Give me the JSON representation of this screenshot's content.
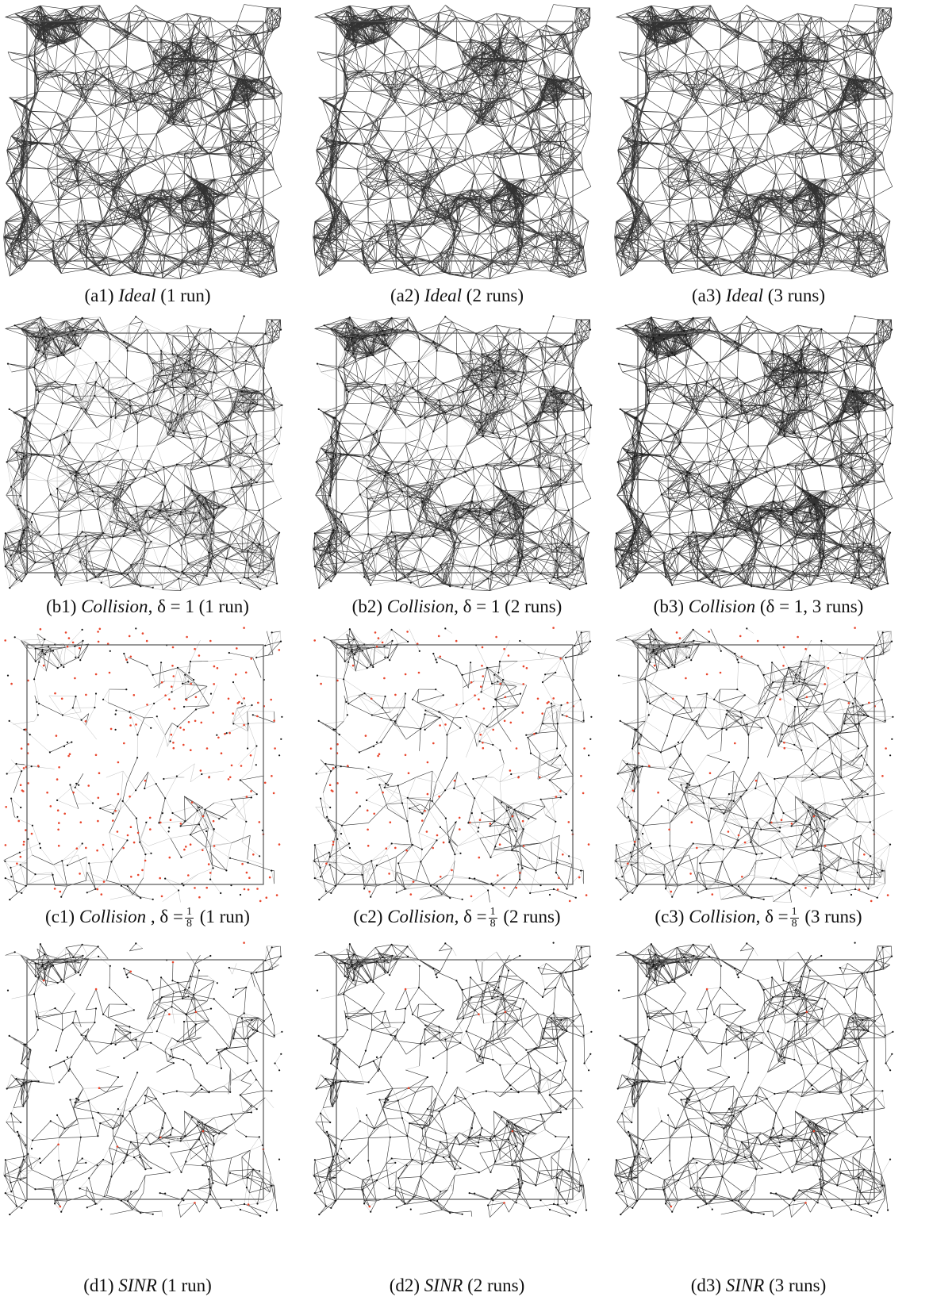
{
  "colors": {
    "edge_dark": "#333333",
    "edge_light": "#bdbdbd",
    "node": "#111111",
    "isolated_node": "#e8452c",
    "frame": "#555555"
  },
  "panels": [
    {
      "id": "a1",
      "label": "(a1)",
      "model": "Ideal",
      "delta": "",
      "runs": "(1 run)",
      "style": "ideal",
      "level": 1
    },
    {
      "id": "a2",
      "label": "(a2)",
      "model": "Ideal",
      "delta": "",
      "runs": "(2 runs)",
      "style": "ideal",
      "level": 2
    },
    {
      "id": "a3",
      "label": "(a3)",
      "model": "Ideal",
      "delta": "",
      "runs": "(3 runs)",
      "style": "ideal",
      "level": 3
    },
    {
      "id": "b1",
      "label": "(b1)",
      "model": "Collision",
      "delta": "δ = 1",
      "runs": "(1 run)",
      "style": "collision1",
      "level": 1
    },
    {
      "id": "b2",
      "label": "(b2)",
      "model": "Collision",
      "delta": "δ = 1",
      "runs": "(2 runs)",
      "style": "collision1",
      "level": 2
    },
    {
      "id": "b3",
      "label": "(b3)",
      "model": "Collision",
      "delta": "(δ = 1, 3 runs)",
      "runs": "",
      "style": "collision1",
      "level": 3
    },
    {
      "id": "c1",
      "label": "(c1)",
      "model": "Collision",
      "delta": "δ =",
      "frac_num": "1",
      "frac_den": "8",
      "runs": "(1 run)",
      "style": "collision8",
      "level": 1
    },
    {
      "id": "c2",
      "label": "(c2)",
      "model": "Collision",
      "delta": "δ =",
      "frac_num": "1",
      "frac_den": "8",
      "runs": "(2 runs)",
      "style": "collision8",
      "level": 2
    },
    {
      "id": "c3",
      "label": "(c3)",
      "model": "Collision",
      "delta": "δ =",
      "frac_num": "1",
      "frac_den": "8",
      "runs": "(3 runs)",
      "style": "collision8",
      "level": 3
    },
    {
      "id": "d1",
      "label": "(d1)",
      "model": "SINR",
      "delta": "",
      "runs": "(1 run)",
      "style": "sinr",
      "level": 1
    },
    {
      "id": "d2",
      "label": "(d2)",
      "model": "SINR",
      "delta": "",
      "runs": "(2 runs)",
      "style": "sinr",
      "level": 2
    },
    {
      "id": "d3",
      "label": "(d3)",
      "model": "SINR",
      "delta": "",
      "runs": "(3 runs)",
      "style": "sinr",
      "level": 3
    }
  ]
}
